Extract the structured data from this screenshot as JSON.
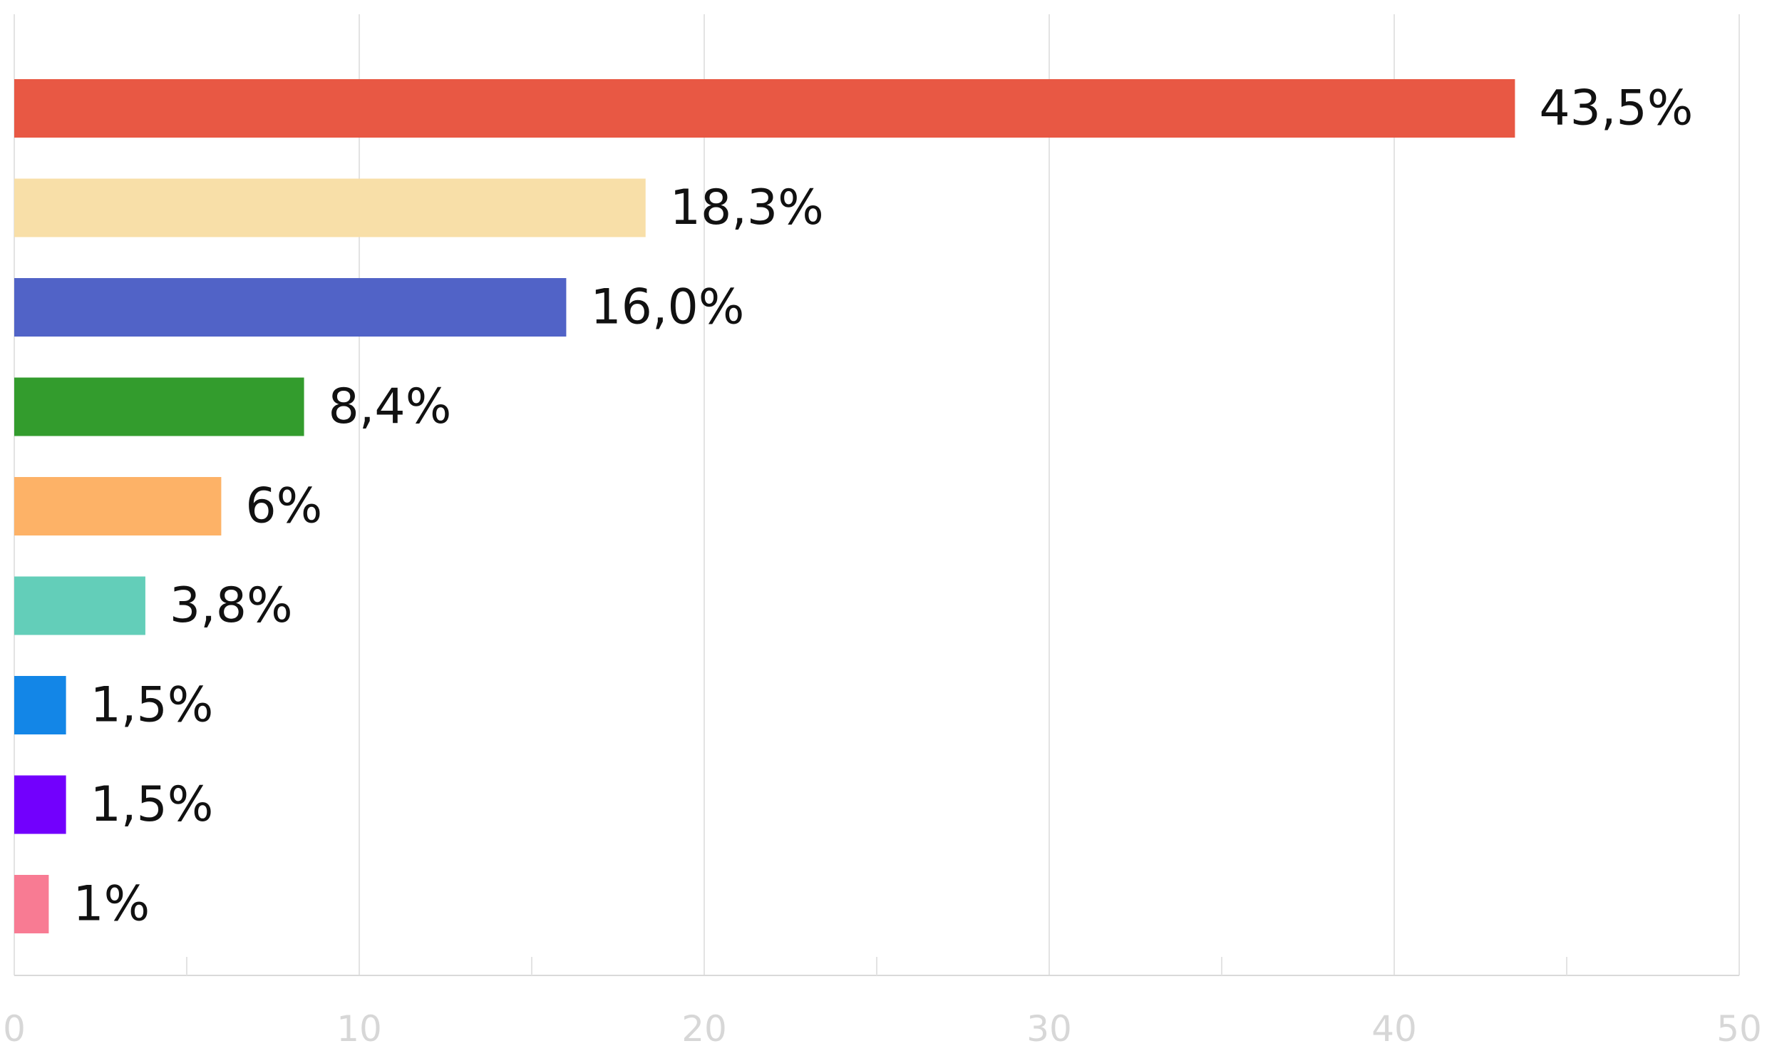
{
  "chart_data": {
    "type": "bar",
    "orientation": "horizontal",
    "values": [
      43.5,
      18.3,
      16.0,
      8.4,
      6,
      3.8,
      1.5,
      1.5,
      1
    ],
    "data_labels": [
      "43,5%",
      "18,3%",
      "16,0%",
      "8,4%",
      "6%",
      "3,8%",
      "1,5%",
      "1,5%",
      "1%"
    ],
    "colors": [
      "#E85844",
      "#F8DFA8",
      "#5163C7",
      "#339C2D",
      "#FDB267",
      "#63CEB9",
      "#1386E7",
      "#7200FD",
      "#F87B93"
    ],
    "xlim": [
      0,
      50
    ],
    "x_ticks": [
      0,
      10,
      20,
      30,
      40,
      50
    ],
    "x_tick_labels": [
      "0",
      "10",
      "20",
      "30",
      "40",
      "50"
    ],
    "x_minor_ticks": [
      5,
      15,
      25,
      35,
      45
    ],
    "grid": true,
    "grid_color": "#e3e3e3",
    "axis_color": "#d9d9d9",
    "tick_label_color": "#d7d7d7",
    "label_color": "#111111"
  }
}
